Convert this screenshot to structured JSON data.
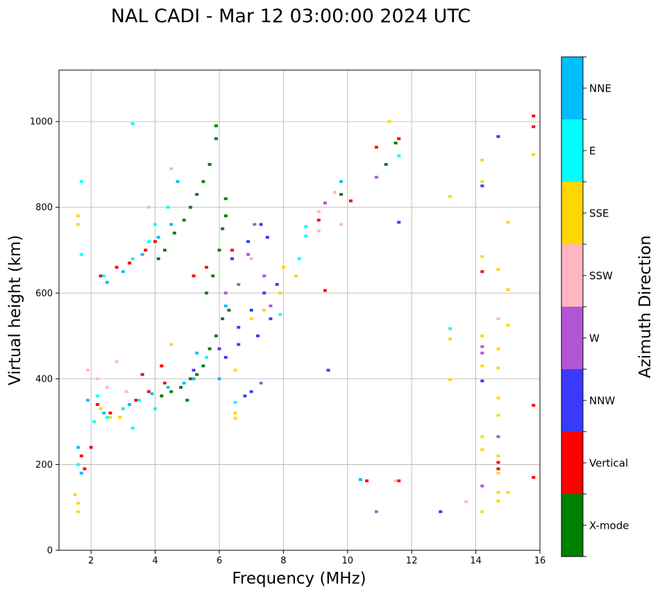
{
  "chart_data": {
    "type": "scatter",
    "title": "NAL CADI - Mar 12 03:00:00 2024 UTC",
    "xlabel": "Frequency (MHz)",
    "ylabel": "Virtual height (km)",
    "xlim": [
      1,
      16
    ],
    "ylim": [
      0,
      1120
    ],
    "xticks": [
      "2",
      "4",
      "6",
      "8",
      "10",
      "12",
      "14",
      "16"
    ],
    "yticks": [
      "0",
      "200",
      "400",
      "600",
      "800",
      "1000"
    ],
    "grid": true,
    "colorbar": {
      "label": "Azimuth Direction",
      "position": "right",
      "categories": [
        {
          "name": "X-mode",
          "color": "#008000"
        },
        {
          "name": "Vertical",
          "color": "#ff0000"
        },
        {
          "name": "NNW",
          "color": "#3a3aff"
        },
        {
          "name": "W",
          "color": "#b256d6"
        },
        {
          "name": "SSW",
          "color": "#ffb6c1"
        },
        {
          "name": "SSE",
          "color": "#ffd700"
        },
        {
          "name": "E",
          "color": "#00ffff"
        },
        {
          "name": "NNE",
          "color": "#00bfff"
        }
      ]
    },
    "series": [
      {
        "name": "X-mode",
        "points": [
          [
            4.1,
            680
          ],
          [
            4.3,
            700
          ],
          [
            4.6,
            740
          ],
          [
            4.9,
            770
          ],
          [
            5.1,
            800
          ],
          [
            5.3,
            830
          ],
          [
            5.5,
            860
          ],
          [
            5.7,
            900
          ],
          [
            5.9,
            960
          ],
          [
            5.9,
            990
          ],
          [
            6.1,
            750
          ],
          [
            6.2,
            780
          ],
          [
            4.5,
            370
          ],
          [
            4.8,
            380
          ],
          [
            5.1,
            400
          ],
          [
            5.3,
            410
          ],
          [
            5.5,
            430
          ],
          [
            5.7,
            470
          ],
          [
            5.9,
            500
          ],
          [
            6.1,
            540
          ],
          [
            6.3,
            560
          ],
          [
            5.6,
            600
          ],
          [
            5.8,
            640
          ],
          [
            6.0,
            700
          ],
          [
            6.2,
            820
          ],
          [
            9.8,
            830
          ],
          [
            11.2,
            900
          ],
          [
            11.5,
            950
          ],
          [
            5.0,
            350
          ],
          [
            4.2,
            360
          ]
        ]
      },
      {
        "name": "Vertical",
        "points": [
          [
            2.3,
            640
          ],
          [
            2.8,
            660
          ],
          [
            3.2,
            670
          ],
          [
            3.7,
            700
          ],
          [
            4.0,
            720
          ],
          [
            3.0,
            330
          ],
          [
            3.4,
            350
          ],
          [
            3.8,
            370
          ],
          [
            4.3,
            390
          ],
          [
            2.2,
            340
          ],
          [
            2.6,
            320
          ],
          [
            1.7,
            220
          ],
          [
            1.8,
            190
          ],
          [
            2.0,
            240
          ],
          [
            5.2,
            640
          ],
          [
            5.6,
            660
          ],
          [
            6.4,
            700
          ],
          [
            9.1,
            770
          ],
          [
            10.1,
            815
          ],
          [
            10.9,
            940
          ],
          [
            11.6,
            960
          ],
          [
            10.6,
            162
          ],
          [
            11.6,
            162
          ],
          [
            15.8,
            1013
          ],
          [
            15.8,
            988
          ],
          [
            15.8,
            338
          ],
          [
            15.8,
            170
          ],
          [
            14.7,
            205
          ],
          [
            14.7,
            190
          ],
          [
            9.3,
            606
          ],
          [
            14.2,
            650
          ],
          [
            3.6,
            410
          ],
          [
            4.2,
            430
          ]
        ]
      },
      {
        "name": "NNW",
        "points": [
          [
            6.8,
            360
          ],
          [
            7.0,
            370
          ],
          [
            6.2,
            450
          ],
          [
            6.6,
            520
          ],
          [
            7.0,
            560
          ],
          [
            7.4,
            600
          ],
          [
            7.8,
            620
          ],
          [
            6.6,
            480
          ],
          [
            7.2,
            500
          ],
          [
            7.6,
            540
          ],
          [
            5.2,
            420
          ],
          [
            6.0,
            470
          ],
          [
            6.4,
            680
          ],
          [
            6.9,
            720
          ],
          [
            7.3,
            760
          ],
          [
            14.2,
            850
          ],
          [
            14.7,
            965
          ],
          [
            14.2,
            395
          ],
          [
            12.9,
            90
          ],
          [
            11.6,
            765
          ],
          [
            9.4,
            420
          ],
          [
            7.5,
            730
          ]
        ]
      },
      {
        "name": "W",
        "points": [
          [
            6.9,
            690
          ],
          [
            7.4,
            640
          ],
          [
            7.6,
            570
          ],
          [
            6.6,
            620
          ],
          [
            10.9,
            870
          ],
          [
            9.3,
            810
          ],
          [
            14.2,
            475
          ],
          [
            14.2,
            460
          ],
          [
            14.7,
            265
          ],
          [
            14.2,
            150
          ],
          [
            10.9,
            90
          ],
          [
            7.3,
            390
          ],
          [
            6.2,
            600
          ],
          [
            7.1,
            760
          ]
        ]
      },
      {
        "name": "SSW",
        "points": [
          [
            1.9,
            420
          ],
          [
            2.2,
            400
          ],
          [
            2.5,
            380
          ],
          [
            2.8,
            440
          ],
          [
            3.1,
            370
          ],
          [
            9.6,
            835
          ],
          [
            9.1,
            790
          ],
          [
            9.1,
            745
          ],
          [
            9.8,
            760
          ],
          [
            14.7,
            540
          ],
          [
            13.7,
            113
          ],
          [
            11.5,
            162
          ],
          [
            4.5,
            890
          ],
          [
            3.8,
            800
          ],
          [
            7.0,
            680
          ]
        ]
      },
      {
        "name": "SSE",
        "points": [
          [
            1.5,
            130
          ],
          [
            1.6,
            110
          ],
          [
            1.6,
            780
          ],
          [
            1.6,
            760
          ],
          [
            2.3,
            330
          ],
          [
            2.6,
            310
          ],
          [
            2.9,
            310
          ],
          [
            7.0,
            540
          ],
          [
            7.4,
            560
          ],
          [
            7.9,
            600
          ],
          [
            8.0,
            660
          ],
          [
            8.4,
            640
          ],
          [
            6.5,
            420
          ],
          [
            6.5,
            320
          ],
          [
            6.5,
            308
          ],
          [
            11.3,
            1000
          ],
          [
            13.2,
            825
          ],
          [
            14.2,
            910
          ],
          [
            14.2,
            860
          ],
          [
            15.0,
            765
          ],
          [
            14.2,
            685
          ],
          [
            14.7,
            655
          ],
          [
            15.0,
            608
          ],
          [
            14.2,
            500
          ],
          [
            14.7,
            470
          ],
          [
            14.7,
            425
          ],
          [
            14.2,
            430
          ],
          [
            14.7,
            355
          ],
          [
            14.7,
            315
          ],
          [
            14.2,
            265
          ],
          [
            14.2,
            235
          ],
          [
            14.7,
            220
          ],
          [
            14.7,
            180
          ],
          [
            14.7,
            135
          ],
          [
            14.7,
            115
          ],
          [
            15.0,
            135
          ],
          [
            14.2,
            90
          ],
          [
            13.2,
            493
          ],
          [
            13.2,
            398
          ],
          [
            15.8,
            923
          ],
          [
            15.0,
            525
          ],
          [
            4.5,
            480
          ],
          [
            1.6,
            90
          ]
        ]
      },
      {
        "name": "E",
        "points": [
          [
            1.7,
            860
          ],
          [
            1.7,
            690
          ],
          [
            2.4,
            640
          ],
          [
            3.3,
            680
          ],
          [
            3.8,
            720
          ],
          [
            4.0,
            760
          ],
          [
            4.4,
            800
          ],
          [
            2.1,
            300
          ],
          [
            2.5,
            310
          ],
          [
            3.0,
            330
          ],
          [
            3.5,
            350
          ],
          [
            4.0,
            330
          ],
          [
            8.7,
            755
          ],
          [
            8.7,
            733
          ],
          [
            8.5,
            680
          ],
          [
            7.9,
            550
          ],
          [
            6.5,
            345
          ],
          [
            11.6,
            920
          ],
          [
            13.2,
            517
          ],
          [
            3.3,
            285
          ],
          [
            1.6,
            200
          ],
          [
            3.3,
            995
          ],
          [
            2.2,
            360
          ],
          [
            5.6,
            450
          ]
        ]
      },
      {
        "name": "NNE",
        "points": [
          [
            2.5,
            625
          ],
          [
            3.0,
            650
          ],
          [
            3.6,
            690
          ],
          [
            4.1,
            730
          ],
          [
            4.5,
            760
          ],
          [
            1.6,
            240
          ],
          [
            1.7,
            180
          ],
          [
            1.9,
            350
          ],
          [
            2.4,
            320
          ],
          [
            3.2,
            340
          ],
          [
            3.9,
            365
          ],
          [
            4.4,
            380
          ],
          [
            4.9,
            390
          ],
          [
            5.2,
            400
          ],
          [
            6.0,
            400
          ],
          [
            9.8,
            860
          ],
          [
            6.2,
            570
          ],
          [
            5.3,
            460
          ],
          [
            10.4,
            165
          ],
          [
            4.7,
            860
          ]
        ]
      }
    ]
  }
}
